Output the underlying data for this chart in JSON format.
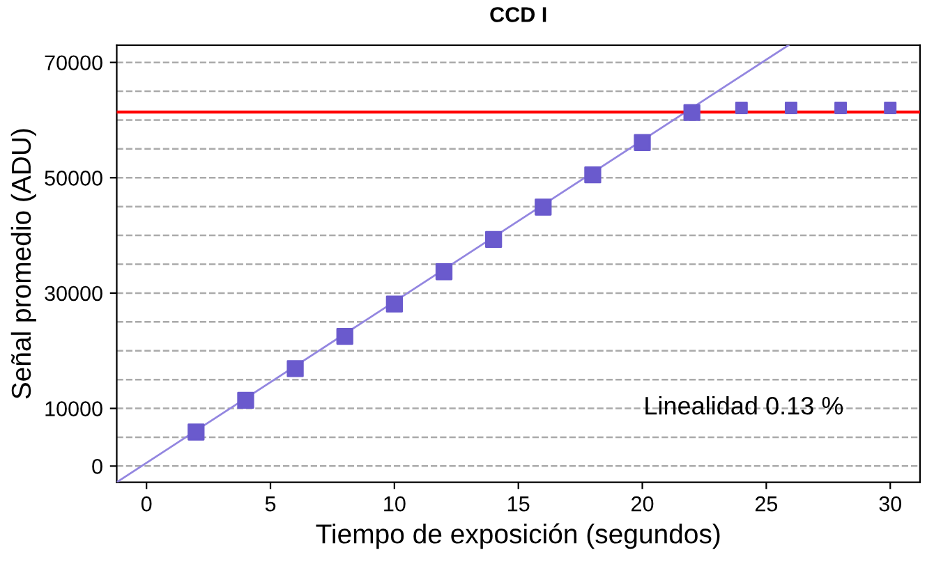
{
  "chart_data": {
    "type": "scatter",
    "title": "CCD I",
    "xlabel": "Tiempo de exposición (segundos)",
    "ylabel": "Señal promedio (ADU)",
    "marker": "square",
    "series": [
      {
        "color": "#6a5acd",
        "x": [
          2,
          4,
          6,
          8,
          10,
          12,
          14,
          16,
          18,
          20,
          22
        ],
        "values": [
          5900,
          11400,
          16900,
          22500,
          28100,
          33700,
          39300,
          44900,
          50500,
          56100,
          61300
        ]
      },
      {
        "color": "#6a5acd",
        "x": [
          24,
          26,
          28,
          30
        ],
        "values": [
          62100,
          62100,
          62100,
          62100
        ]
      },
      {
        "type": "line",
        "marker": "none",
        "color": "#9386e0",
        "x": [
          -1.2,
          25.9
        ],
        "values": [
          -2800,
          73000
        ]
      }
    ],
    "ref_lines": [
      {
        "axis": "y",
        "value": 61400,
        "color": "#ff0000"
      }
    ],
    "annotations": [
      "Linealidad 0.13 %"
    ],
    "xlim": [
      -1.2,
      31.2
    ],
    "ylim": [
      -2800,
      73000
    ],
    "xticks": [
      0,
      5,
      10,
      15,
      20,
      25,
      30
    ],
    "yticks": [
      0,
      {
        "value": 5000,
        "label": null
      },
      10000,
      {
        "value": 15000,
        "label": null
      },
      {
        "value": 20000,
        "label": null
      },
      {
        "value": 25000,
        "label": null
      },
      30000,
      {
        "value": 35000,
        "label": null
      },
      {
        "value": 40000,
        "label": null
      },
      {
        "value": 45000,
        "label": null
      },
      50000,
      {
        "value": 55000,
        "label": null
      },
      {
        "value": 60000,
        "label": null
      },
      {
        "value": 65000,
        "label": null
      },
      70000
    ],
    "grid": "y"
  }
}
